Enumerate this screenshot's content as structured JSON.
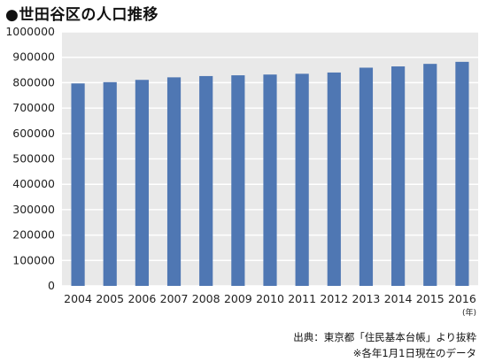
{
  "title": "●世田谷区の人口推移",
  "chart_data": {
    "type": "bar",
    "title": "●世田谷区の人口推移",
    "categories": [
      "2004",
      "2005",
      "2006",
      "2007",
      "2008",
      "2009",
      "2010",
      "2011",
      "2012",
      "2013",
      "2014",
      "2015",
      "2016"
    ],
    "values": [
      797000,
      802000,
      811000,
      821000,
      826000,
      829000,
      832000,
      835000,
      840000,
      859000,
      864000,
      874000,
      882000
    ],
    "xlabel": "",
    "ylabel": "",
    "x_unit": "(年)",
    "ylim": [
      0,
      1000000
    ],
    "yticks": [
      0,
      100000,
      200000,
      300000,
      400000,
      500000,
      600000,
      700000,
      800000,
      900000,
      1000000
    ],
    "grid": true,
    "legend": "none",
    "bar_color": "#4f77b3"
  },
  "footer": {
    "source": "出典：東京都「住民基本台帳」より抜粋",
    "note": "※各年1月1日現在のデータ"
  },
  "colors": {
    "bar": "#4f77b3",
    "plot_bg": "#e9e9e9",
    "grid": "#ffffff"
  }
}
